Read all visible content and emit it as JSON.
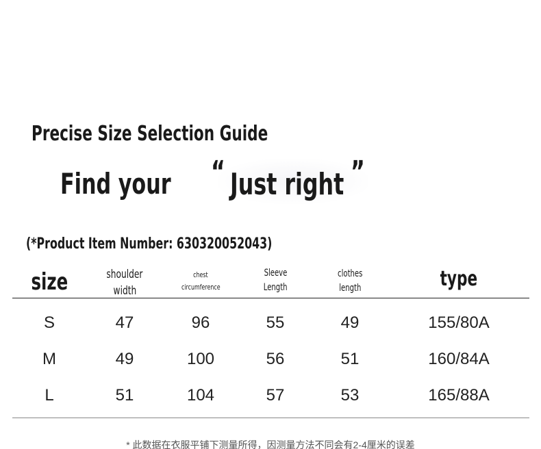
{
  "title": "Precise Size Selection Guide",
  "tagline": {
    "left": "Find your",
    "quoted": "Just right",
    "open_quote": "“",
    "close_quote": "”"
  },
  "item_number": "(*Product Item Number: 630320052043)",
  "table": {
    "headers": [
      "size",
      "shoulder\nwidth",
      "chest\ncircumference",
      "Sleeve\nLength",
      "clothes\nlength",
      "type"
    ],
    "header_lines": [
      [
        "size"
      ],
      [
        "shoulder",
        "width"
      ],
      [
        "chest",
        "circumference"
      ],
      [
        "Sleeve",
        "Length"
      ],
      [
        "clothes",
        "length"
      ],
      [
        "type"
      ]
    ],
    "rows": [
      [
        "S",
        "47",
        "96",
        "55",
        "49",
        "155/80A"
      ],
      [
        "M",
        "49",
        "100",
        "56",
        "51",
        "160/84A"
      ],
      [
        "L",
        "51",
        "104",
        "57",
        "53",
        "165/88A"
      ]
    ]
  },
  "footnote": "* 此数据在衣服平铺下测量所得，因测量方法不同会有2-4厘米的误差"
}
